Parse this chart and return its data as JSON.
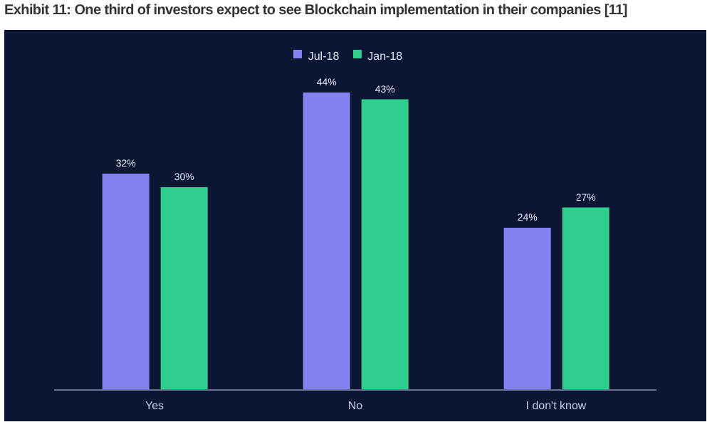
{
  "chart_data": {
    "type": "bar",
    "title": "Exhibit 11: One third of investors expect to see Blockchain implementation in their companies [11]",
    "categories": [
      "Yes",
      "No",
      "I don't know"
    ],
    "series": [
      {
        "name": "Jul-18",
        "color": "#8482f0",
        "values": [
          32,
          44,
          24
        ],
        "value_labels": [
          "32%",
          "44%",
          "24%"
        ]
      },
      {
        "name": "Jan-18",
        "color": "#2fce8c",
        "values": [
          30,
          43,
          27
        ],
        "value_labels": [
          "30%",
          "43%",
          "27%"
        ]
      }
    ],
    "legend": "top",
    "grid": false
  }
}
